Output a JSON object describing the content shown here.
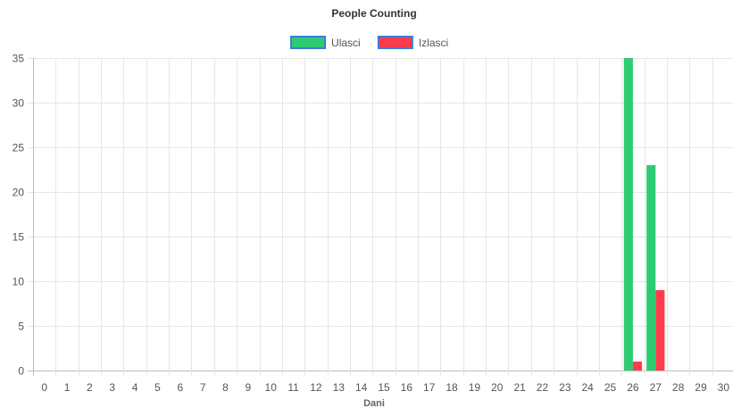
{
  "chart_data": {
    "type": "bar",
    "title": "People Counting",
    "xlabel": "Dani",
    "ylabel": "",
    "ylim": [
      0,
      35
    ],
    "yticks": [
      0,
      5,
      10,
      15,
      20,
      25,
      30,
      35
    ],
    "grid": true,
    "legend_position": "top",
    "categories": [
      "0",
      "1",
      "2",
      "3",
      "4",
      "5",
      "6",
      "7",
      "8",
      "9",
      "10",
      "11",
      "12",
      "13",
      "14",
      "15",
      "16",
      "17",
      "18",
      "19",
      "20",
      "21",
      "22",
      "23",
      "24",
      "25",
      "26",
      "27",
      "28",
      "29",
      "30"
    ],
    "series": [
      {
        "name": "Ulasci",
        "color": "#2ecc71",
        "border_color": "#3b7dd8",
        "values": [
          0,
          0,
          0,
          0,
          0,
          0,
          0,
          0,
          0,
          0,
          0,
          0,
          0,
          0,
          0,
          0,
          0,
          0,
          0,
          0,
          0,
          0,
          0,
          0,
          0,
          0,
          35,
          23,
          0,
          0,
          0
        ]
      },
      {
        "name": "Izlasci",
        "color": "#ff3b4e",
        "border_color": "#3b7dd8",
        "values": [
          0,
          0,
          0,
          0,
          0,
          0,
          0,
          0,
          0,
          0,
          0,
          0,
          0,
          0,
          0,
          0,
          0,
          0,
          0,
          0,
          0,
          0,
          0,
          0,
          0,
          0,
          1,
          9,
          0,
          0,
          0
        ]
      }
    ]
  }
}
